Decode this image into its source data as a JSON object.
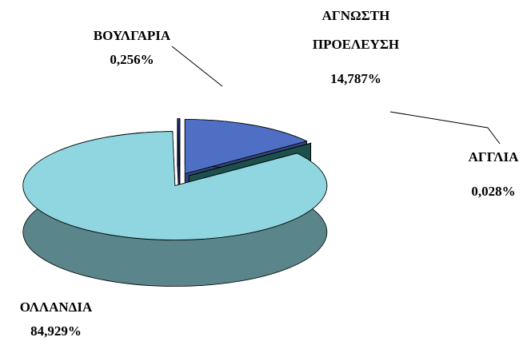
{
  "chart_data": {
    "type": "pie",
    "categories": [
      "ΑΓΝΩΣΤΗ ΠΡΟΕΛΕΥΣΗ",
      "ΑΓΓΛΙΑ",
      "ΟΛΛΑΝΔΙΑ",
      "ΒΟΥΛΓΑΡΙΑ"
    ],
    "values": [
      14.787,
      0.028,
      84.929,
      0.256
    ],
    "value_labels": [
      "14,787%",
      "0,028%",
      "84,929%",
      "0,256%"
    ],
    "colors": [
      "#4f6fc4",
      "#2f7f7a",
      "#8fd6e0",
      "#24338c"
    ]
  }
}
